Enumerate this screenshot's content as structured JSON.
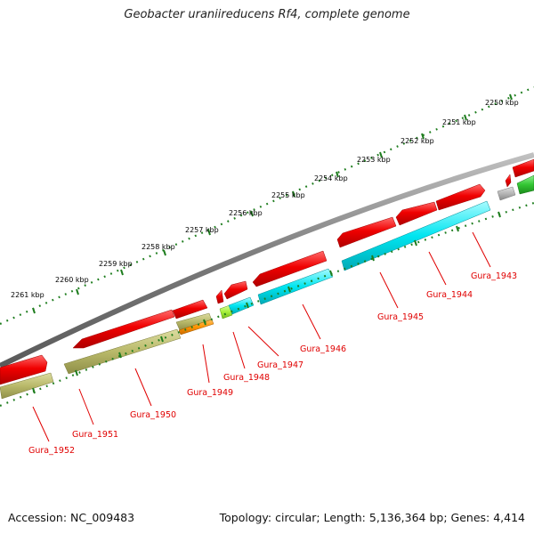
{
  "title": "Geobacter uraniireducens Rf4, complete genome",
  "accession": "Accession: NC_009483",
  "topology": "Topology: circular; Length: 5,136,364 bp; Genes: 4,414",
  "colors": {
    "backbone": "#8c8c8c",
    "cds": "#e00000",
    "label": "#e00000",
    "tick": "#1e7d1e",
    "olive": "#b9b96a",
    "cyan": "#00e5f0",
    "orange": "#ff9400",
    "lime": "#a6f03a",
    "gray": "#b5b5b5",
    "green": "#33c633"
  },
  "kbp_labels": [
    "2250 kbp",
    "2251 kbp",
    "2252 kbp",
    "2253 kbp",
    "2254 kbp",
    "2255 kbp",
    "2256 kbp",
    "2257 kbp",
    "2258 kbp",
    "2259 kbp",
    "2260 kbp",
    "2261 kbp"
  ],
  "gene_labels": [
    "Gura_1943",
    "Gura_1944",
    "Gura_1945",
    "Gura_1946",
    "Gura_1947",
    "Gura_1948",
    "Gura_1949",
    "Gura_1950",
    "Gura_1951",
    "Gura_1952"
  ]
}
